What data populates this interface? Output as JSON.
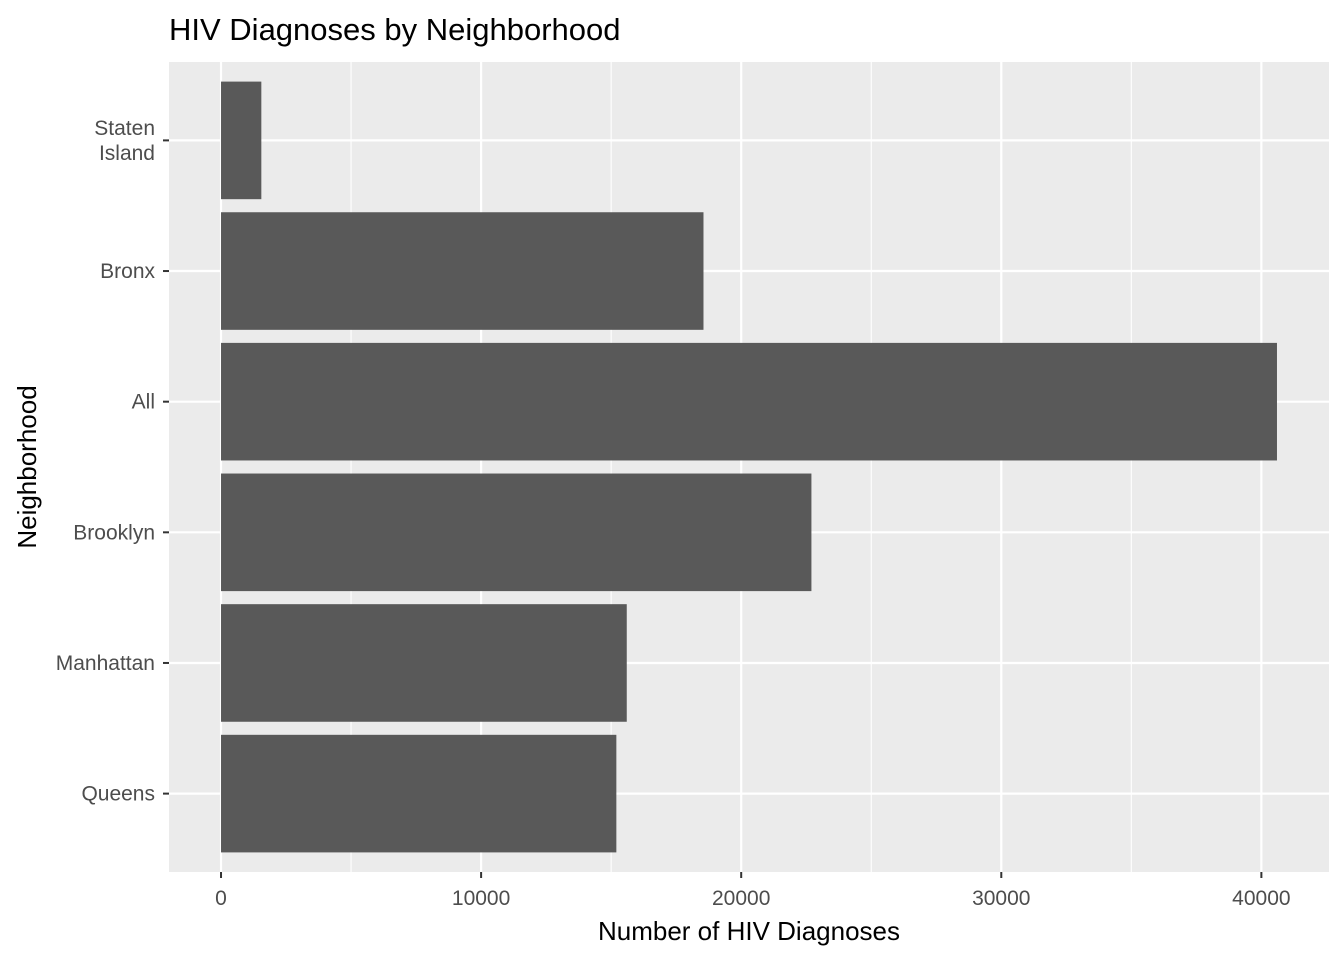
{
  "chart_data": {
    "type": "bar",
    "orientation": "horizontal",
    "title": "HIV Diagnoses by Neighborhood",
    "xlabel": "Number of HIV Diagnoses",
    "ylabel": "Neighborhood",
    "categories": [
      "Queens",
      "Manhattan",
      "Brooklyn",
      "All",
      "Bronx",
      "Staten Island"
    ],
    "category_tick_lines": [
      [
        "Queens"
      ],
      [
        "Manhattan"
      ],
      [
        "Brooklyn"
      ],
      [
        "All"
      ],
      [
        "Bronx"
      ],
      [
        "Staten",
        "Island"
      ]
    ],
    "values": [
      15200,
      15600,
      22700,
      40600,
      18550,
      1550
    ],
    "xlim": [
      -2000,
      42600
    ],
    "x_ticks": [
      0,
      10000,
      20000,
      30000,
      40000
    ],
    "x_minor_ticks": [
      5000,
      15000,
      25000,
      35000
    ],
    "x_tick_labels": [
      "0",
      "10000",
      "20000",
      "30000",
      "40000"
    ],
    "grid": true,
    "legend": "none",
    "colors": {
      "bar": "#595959",
      "panel": "#ebebeb",
      "grid": "#ffffff",
      "tick_text": "#4d4d4d",
      "tick_mark": "#333333"
    }
  }
}
